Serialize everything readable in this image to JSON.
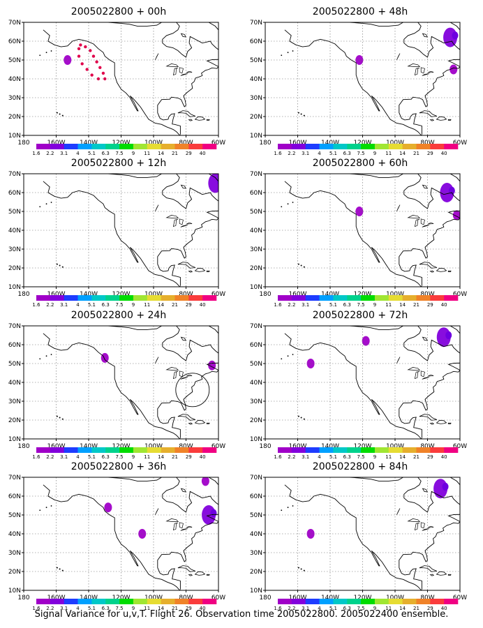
{
  "figure": {
    "caption": "Signal Variance for u,v,T. Flight 26. Observation time 2005022800. 2005022400 ensemble."
  },
  "axes": {
    "lat_labels": [
      "70N",
      "60N",
      "50N",
      "40N",
      "30N",
      "20N",
      "10N"
    ],
    "lon_labels": [
      "180",
      "160W",
      "140W",
      "120W",
      "100W",
      "80W",
      "60W"
    ]
  },
  "colorbar": {
    "labels": [
      "1.6",
      "2.2",
      "3.1",
      "4",
      "5.1",
      "6.3",
      "7.5",
      "9",
      "11",
      "14",
      "21",
      "29",
      "40"
    ],
    "colors": [
      "#a000c8",
      "#8200dc",
      "#1e3cff",
      "#00a0ff",
      "#00c8c8",
      "#00d28c",
      "#00dc00",
      "#a0e632",
      "#e6dc32",
      "#e6af2d",
      "#f08228",
      "#fa3c3c",
      "#f00082"
    ]
  },
  "panels": [
    {
      "title": "2005022800 + 00h"
    },
    {
      "title": "2005022800 + 48h"
    },
    {
      "title": "2005022800 + 12h"
    },
    {
      "title": "2005022800 + 60h"
    },
    {
      "title": "2005022800 + 24h"
    },
    {
      "title": "2005022800 + 72h"
    },
    {
      "title": "2005022800 + 36h"
    },
    {
      "title": "2005022800 + 84h"
    }
  ],
  "chart_data": {
    "type": "map",
    "projection": "lat-lon",
    "lon_range": [
      -180,
      -60
    ],
    "lat_range": [
      10,
      70
    ],
    "panels": [
      {
        "title": "2005022800 + 00h",
        "flight_track": [
          [
            -145,
            58
          ],
          [
            -142,
            57
          ],
          [
            -139,
            55
          ],
          [
            -137,
            52
          ],
          [
            -135,
            49
          ],
          [
            -133,
            46
          ],
          [
            -131,
            43
          ],
          [
            -130,
            40
          ],
          [
            -134,
            40
          ],
          [
            -138,
            42
          ],
          [
            -141,
            45
          ],
          [
            -144,
            48
          ],
          [
            -146,
            52
          ],
          [
            -146,
            56
          ]
        ],
        "variance_blobs": [
          {
            "lon": -153,
            "lat": 50,
            "value": 1.6
          }
        ]
      },
      {
        "title": "2005022800 + 48h",
        "flight_track": [],
        "variance_blobs": [
          {
            "lon": -122,
            "lat": 50,
            "value": 1.6
          },
          {
            "lon": -66,
            "lat": 62,
            "value": 2.2
          },
          {
            "lon": -64,
            "lat": 45,
            "value": 1.6
          }
        ]
      },
      {
        "title": "2005022800 + 12h",
        "flight_track": [],
        "variance_blobs": [
          {
            "lon": -62,
            "lat": 65,
            "value": 2.2
          }
        ]
      },
      {
        "title": "2005022800 + 60h",
        "flight_track": [],
        "variance_blobs": [
          {
            "lon": -68,
            "lat": 60,
            "value": 2.2
          },
          {
            "lon": -62,
            "lat": 48,
            "value": 1.6
          },
          {
            "lon": -122,
            "lat": 50,
            "value": 1.6
          }
        ]
      },
      {
        "title": "2005022800 + 24h",
        "flight_track": [],
        "variance_blobs": [
          {
            "lon": -130,
            "lat": 53,
            "value": 1.6
          },
          {
            "lon": -64,
            "lat": 49,
            "value": 1.6
          }
        ]
      },
      {
        "title": "2005022800 + 72h",
        "flight_track": [],
        "variance_blobs": [
          {
            "lon": -70,
            "lat": 64,
            "value": 2.2
          },
          {
            "lon": -118,
            "lat": 62,
            "value": 1.6
          },
          {
            "lon": -152,
            "lat": 50,
            "value": 1.6
          }
        ]
      },
      {
        "title": "2005022800 + 36h",
        "flight_track": [],
        "variance_blobs": [
          {
            "lon": -128,
            "lat": 54,
            "value": 1.6
          },
          {
            "lon": -66,
            "lat": 50,
            "value": 2.2
          },
          {
            "lon": -107,
            "lat": 40,
            "value": 1.6
          },
          {
            "lon": -68,
            "lat": 68,
            "value": 1.6
          }
        ]
      },
      {
        "title": "2005022800 + 84h",
        "flight_track": [],
        "variance_blobs": [
          {
            "lon": -72,
            "lat": 64,
            "value": 2.2
          },
          {
            "lon": -152,
            "lat": 40,
            "value": 1.6
          }
        ]
      }
    ]
  }
}
